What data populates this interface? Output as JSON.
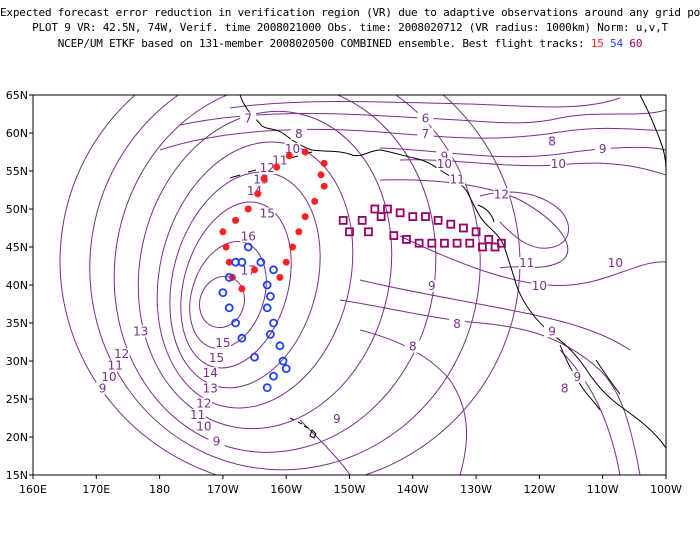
{
  "title_lines": [
    "Expected forecast error reduction in verification region (VR) due to adaptive observations around any grid point.",
    "PLOT 9 VR: 42.5N, 74W, Verif. time 2008021000 Obs. time: 2008020712 (VR radius: 1000km) Norm: u,v,T",
    "NCEP/UM ETKF based on 131-member 2008020500 COMBINED ensemble.  Best flight tracks:"
  ],
  "flight_tracks": {
    "track_a": {
      "label": "15",
      "color": "#ff2020"
    },
    "track_b": {
      "label": "54",
      "color": "#2040ff"
    },
    "track_c": {
      "label": "60",
      "color": "#990066"
    }
  },
  "axes": {
    "lon_labels": [
      "160E",
      "170E",
      "180",
      "170W",
      "160W",
      "150W",
      "140W",
      "130W",
      "120W",
      "110W",
      "100W"
    ],
    "lat_labels": [
      "65N",
      "60N",
      "55N",
      "50N",
      "45N",
      "40N",
      "35N",
      "30N",
      "25N",
      "20N",
      "15N"
    ]
  },
  "contour_labels": [
    {
      "text": "6",
      "lon": -138,
      "lat": 61.5
    },
    {
      "text": "7",
      "lon": -166,
      "lat": 61.5
    },
    {
      "text": "7",
      "lon": -138,
      "lat": 59.5
    },
    {
      "text": "8",
      "lon": -158,
      "lat": 59.5
    },
    {
      "text": "8",
      "lon": -118,
      "lat": 58.5
    },
    {
      "text": "9",
      "lon": -110,
      "lat": 57.5
    },
    {
      "text": "9",
      "lon": -135,
      "lat": 56.5
    },
    {
      "text": "10",
      "lon": -159,
      "lat": 57.5
    },
    {
      "text": "10",
      "lon": -135,
      "lat": 55.5
    },
    {
      "text": "10",
      "lon": -117,
      "lat": 55.5
    },
    {
      "text": "11",
      "lon": -161,
      "lat": 56
    },
    {
      "text": "11",
      "lon": -133,
      "lat": 53.5
    },
    {
      "text": "12",
      "lon": -163,
      "lat": 55
    },
    {
      "text": "12",
      "lon": -126,
      "lat": 51.5
    },
    {
      "text": "13",
      "lon": -164,
      "lat": 53.5
    },
    {
      "text": "14",
      "lon": -165,
      "lat": 52
    },
    {
      "text": "15",
      "lon": -163,
      "lat": 49
    },
    {
      "text": "16",
      "lon": -166,
      "lat": 46
    },
    {
      "text": "17",
      "lon": -166,
      "lat": 41.5
    },
    {
      "text": "11",
      "lon": -122,
      "lat": 42.5
    },
    {
      "text": "10",
      "lon": -120,
      "lat": 39.5
    },
    {
      "text": "10",
      "lon": -108,
      "lat": 42.5
    },
    {
      "text": "9",
      "lon": -137,
      "lat": 39.5
    },
    {
      "text": "9",
      "lon": -118,
      "lat": 33.5
    },
    {
      "text": "8",
      "lon": -133,
      "lat": 34.5
    },
    {
      "text": "8",
      "lon": -140,
      "lat": 31.5
    },
    {
      "text": "8",
      "lon": -116,
      "lat": 26
    },
    {
      "text": "9",
      "lon": -114,
      "lat": 27.5
    },
    {
      "text": "13",
      "lon": -183,
      "lat": 33.5
    },
    {
      "text": "12",
      "lon": -186,
      "lat": 30.5
    },
    {
      "text": "11",
      "lon": -187,
      "lat": 29
    },
    {
      "text": "10",
      "lon": -188,
      "lat": 27.5
    },
    {
      "text": "9",
      "lon": -189,
      "lat": 26
    },
    {
      "text": "15",
      "lon": -170,
      "lat": 32
    },
    {
      "text": "15",
      "lon": -171,
      "lat": 30
    },
    {
      "text": "14",
      "lon": -172,
      "lat": 28
    },
    {
      "text": "13",
      "lon": -172,
      "lat": 26
    },
    {
      "text": "12",
      "lon": -173,
      "lat": 24
    },
    {
      "text": "11",
      "lon": -174,
      "lat": 22.5
    },
    {
      "text": "10",
      "lon": -173,
      "lat": 21
    },
    {
      "text": "9",
      "lon": -171,
      "lat": 19
    },
    {
      "text": "9",
      "lon": -152,
      "lat": 22
    }
  ],
  "track15_points": [
    [
      -170,
      47
    ],
    [
      -169.5,
      45
    ],
    [
      -169,
      43
    ],
    [
      -168.5,
      41
    ],
    [
      -167,
      39.5
    ],
    [
      -168,
      48.5
    ],
    [
      -166,
      50
    ],
    [
      -164.5,
      52
    ],
    [
      -163.5,
      54
    ],
    [
      -161.5,
      55.5
    ],
    [
      -159.5,
      57
    ],
    [
      -157,
      57.5
    ],
    [
      -154,
      56
    ],
    [
      -154.5,
      54.5
    ],
    [
      -154,
      53
    ],
    [
      -155.5,
      51
    ],
    [
      -157,
      49
    ],
    [
      -158,
      47
    ],
    [
      -159,
      45
    ],
    [
      -160,
      43
    ],
    [
      -161,
      41
    ],
    [
      -165,
      42
    ]
  ],
  "track54_points": [
    [
      -166,
      45
    ],
    [
      -164,
      43
    ],
    [
      -162,
      42
    ],
    [
      -163,
      40
    ],
    [
      -162.5,
      38.5
    ],
    [
      -163,
      37
    ],
    [
      -162,
      35
    ],
    [
      -162.5,
      33.5
    ],
    [
      -161,
      32
    ],
    [
      -160.5,
      30
    ],
    [
      -160,
      29
    ],
    [
      -162,
      28
    ],
    [
      -163,
      26.5
    ],
    [
      -165,
      30.5
    ],
    [
      -167,
      33
    ],
    [
      -168,
      35
    ],
    [
      -169,
      37
    ],
    [
      -170,
      39
    ],
    [
      -169,
      41
    ],
    [
      -167,
      43
    ],
    [
      -168,
      43
    ]
  ],
  "track60_points": [
    [
      -151,
      48.5
    ],
    [
      -150,
      47
    ],
    [
      -148,
      48.5
    ],
    [
      -147,
      47
    ],
    [
      -146,
      50
    ],
    [
      -145,
      49
    ],
    [
      -144,
      50
    ],
    [
      -143,
      46.5
    ],
    [
      -142,
      49.5
    ],
    [
      -141,
      46
    ],
    [
      -140,
      49
    ],
    [
      -139,
      45.5
    ],
    [
      -138,
      49
    ],
    [
      -137,
      45.5
    ],
    [
      -136,
      48.5
    ],
    [
      -135,
      45.5
    ],
    [
      -134,
      48
    ],
    [
      -133,
      45.5
    ],
    [
      -132,
      47.5
    ],
    [
      -131,
      45.5
    ],
    [
      -130,
      47
    ],
    [
      -129,
      45
    ],
    [
      -128,
      46
    ],
    [
      -127,
      45
    ],
    [
      -126,
      45.5
    ]
  ]
}
